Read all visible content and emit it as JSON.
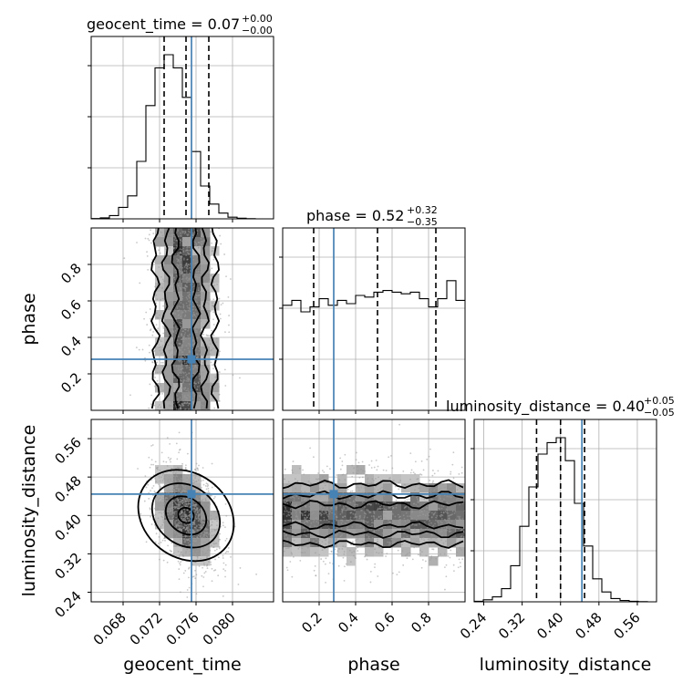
{
  "chart_data": {
    "type": "corner",
    "parameters": [
      {
        "name": "geocent_time",
        "label": "geocent_time",
        "range": [
          0.0645,
          0.0845
        ],
        "ticks": [
          0.068,
          0.072,
          0.076,
          0.08
        ],
        "tick_labels": [
          "0.068",
          "0.072",
          "0.076",
          "0.080"
        ],
        "truth": 0.0755,
        "median": 0.07,
        "title": "geocent_time = 0.07",
        "title_sup": "+0.00",
        "title_sub": "−0.00",
        "quantiles": [
          0.0725,
          0.0749,
          0.0774
        ]
      },
      {
        "name": "phase",
        "label": "phase",
        "range": [
          0.0,
          1.0
        ],
        "ticks": [
          0.2,
          0.4,
          0.6,
          0.8
        ],
        "tick_labels": [
          "0.2",
          "0.4",
          "0.6",
          "0.8"
        ],
        "truth": 0.28,
        "median": 0.52,
        "title": "phase = 0.52",
        "title_sup": "+0.32",
        "title_sub": "−0.35",
        "quantiles": [
          0.17,
          0.52,
          0.84
        ]
      },
      {
        "name": "luminosity_distance",
        "label": "luminosity_distance",
        "range": [
          0.22,
          0.6
        ],
        "ticks": [
          0.24,
          0.32,
          0.4,
          0.48,
          0.56
        ],
        "tick_labels": [
          "0.24",
          "0.32",
          "0.40",
          "0.48",
          "0.56"
        ],
        "truth": 0.4445,
        "median": 0.4,
        "title": "luminosity_distance = 0.40",
        "title_sup": "+0.05",
        "title_sub": "−0.05",
        "quantiles": [
          0.35,
          0.4,
          0.45
        ]
      }
    ],
    "histograms": {
      "geocent_time": [
        0.002,
        0.006,
        0.02,
        0.07,
        0.14,
        0.35,
        0.69,
        0.92,
        1.0,
        0.92,
        0.74,
        0.41,
        0.2,
        0.09,
        0.035,
        0.01,
        0.004,
        0.001,
        0.0,
        0.0
      ],
      "phase": [
        0.64,
        0.67,
        0.6,
        0.63,
        0.68,
        0.64,
        0.67,
        0.65,
        0.7,
        0.69,
        0.72,
        0.73,
        0.72,
        0.71,
        0.72,
        0.68,
        0.63,
        0.68,
        0.79,
        0.67
      ],
      "luminosity_distance": [
        0.003,
        0.012,
        0.03,
        0.08,
        0.22,
        0.46,
        0.7,
        0.9,
        0.97,
        1.0,
        0.86,
        0.6,
        0.34,
        0.14,
        0.06,
        0.02,
        0.008,
        0.003,
        0.001,
        0.0
      ]
    },
    "grid": true,
    "truth_color": "#4682b4"
  }
}
